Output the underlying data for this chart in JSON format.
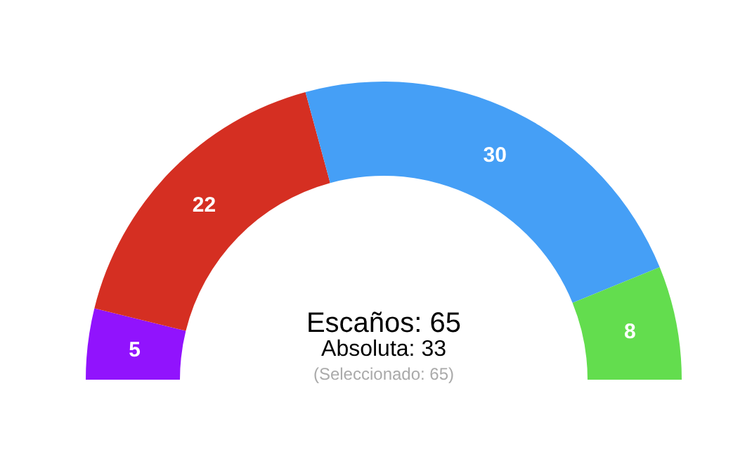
{
  "chart_data": {
    "type": "donut",
    "categories": [
      null,
      null,
      null,
      null
    ],
    "values": [
      5,
      22,
      30,
      8
    ],
    "colors": [
      "#9113fd",
      "#d52f22",
      "#459ff6",
      "#63dd4e"
    ],
    "data_labels": true,
    "annotations": [
      "Escaños: 65",
      "Absoluta: 33",
      "(Seleccionado: 65)"
    ]
  }
}
